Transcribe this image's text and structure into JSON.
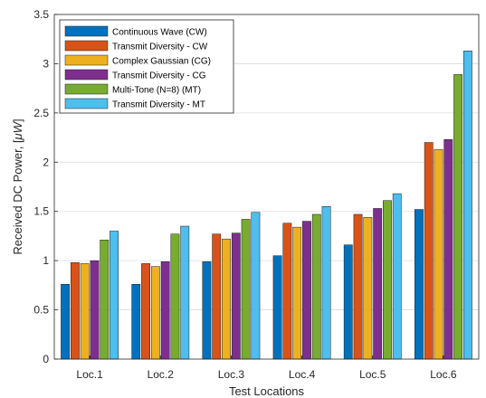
{
  "chart_data": {
    "type": "bar",
    "title": "",
    "xlabel": "Test Locations",
    "ylabel": "Received DC Power, [",
    "ylabel_unit": "μW",
    "ylabel_suffix": "]",
    "ylim": [
      0,
      3.5
    ],
    "yticks": [
      "0",
      "0.5",
      "1",
      "1.5",
      "2",
      "2.5",
      "3",
      "3.5"
    ],
    "grid": true,
    "legend_position": "top-left",
    "categories": [
      "Loc.1",
      "Loc.2",
      "Loc.3",
      "Loc.4",
      "Loc.5",
      "Loc.6"
    ],
    "series": [
      {
        "name": "Continuous Wave (CW)",
        "color": "#0072BD",
        "values": [
          0.76,
          0.76,
          0.99,
          1.05,
          1.16,
          1.52
        ]
      },
      {
        "name": "Transmit Diversity - CW",
        "color": "#D95319",
        "values": [
          0.98,
          0.97,
          1.27,
          1.38,
          1.47,
          2.2
        ]
      },
      {
        "name": "Complex Gaussian (CG)",
        "color": "#EDB120",
        "values": [
          0.97,
          0.94,
          1.22,
          1.34,
          1.44,
          2.13
        ]
      },
      {
        "name": "Transmit Diversity - CG",
        "color": "#7E2F8E",
        "values": [
          1.0,
          0.99,
          1.28,
          1.4,
          1.53,
          2.23
        ]
      },
      {
        "name": "Multi-Tone (N=8) (MT)",
        "color": "#77AC30",
        "values": [
          1.21,
          1.27,
          1.42,
          1.47,
          1.61,
          2.89
        ]
      },
      {
        "name": "Transmit Diversity - MT",
        "color": "#4DBEEE",
        "values": [
          1.3,
          1.35,
          1.49,
          1.55,
          1.68,
          3.13
        ]
      }
    ]
  }
}
